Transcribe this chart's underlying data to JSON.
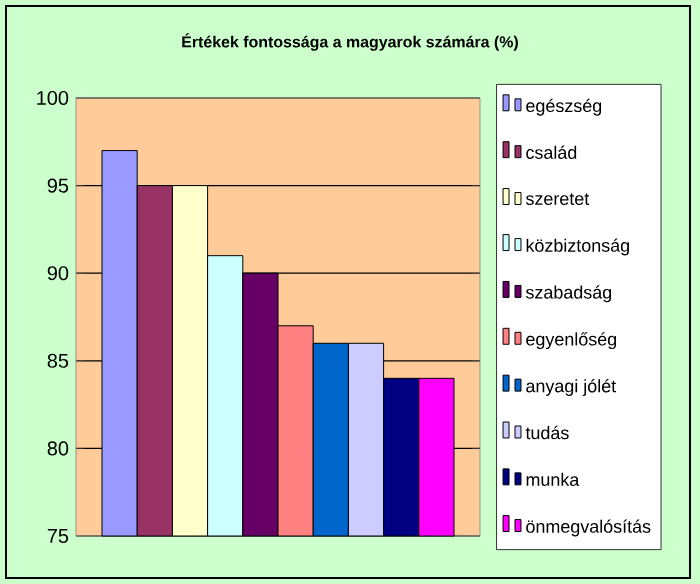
{
  "chart_data": {
    "type": "bar",
    "title": "Értékek fontossága a  magyarok számára  (%)",
    "categories": [
      null
    ],
    "series": [
      {
        "name": "egészség",
        "color": "#9999ff",
        "values": [
          97
        ]
      },
      {
        "name": "család",
        "color": "#993366",
        "values": [
          95
        ]
      },
      {
        "name": "szeretet",
        "color": "#ffffcc",
        "values": [
          95
        ]
      },
      {
        "name": "közbiztonság",
        "color": "#ccffff",
        "values": [
          91
        ]
      },
      {
        "name": "szabadság",
        "color": "#660066",
        "values": [
          90
        ]
      },
      {
        "name": "egyenlőség",
        "color": "#ff8080",
        "values": [
          87
        ]
      },
      {
        "name": "anyagi jólét",
        "color": "#0066cc",
        "values": [
          86
        ]
      },
      {
        "name": "tudás",
        "color": "#ccccff",
        "values": [
          86
        ]
      },
      {
        "name": "munka",
        "color": "#000080",
        "values": [
          84
        ]
      },
      {
        "name": "önmegvalósítás",
        "color": "#ff00ff",
        "values": [
          84
        ]
      }
    ],
    "ylim": [
      75,
      100
    ],
    "yticks": [
      75,
      80,
      85,
      90,
      95,
      100
    ],
    "grid": "y",
    "legend": "right"
  }
}
